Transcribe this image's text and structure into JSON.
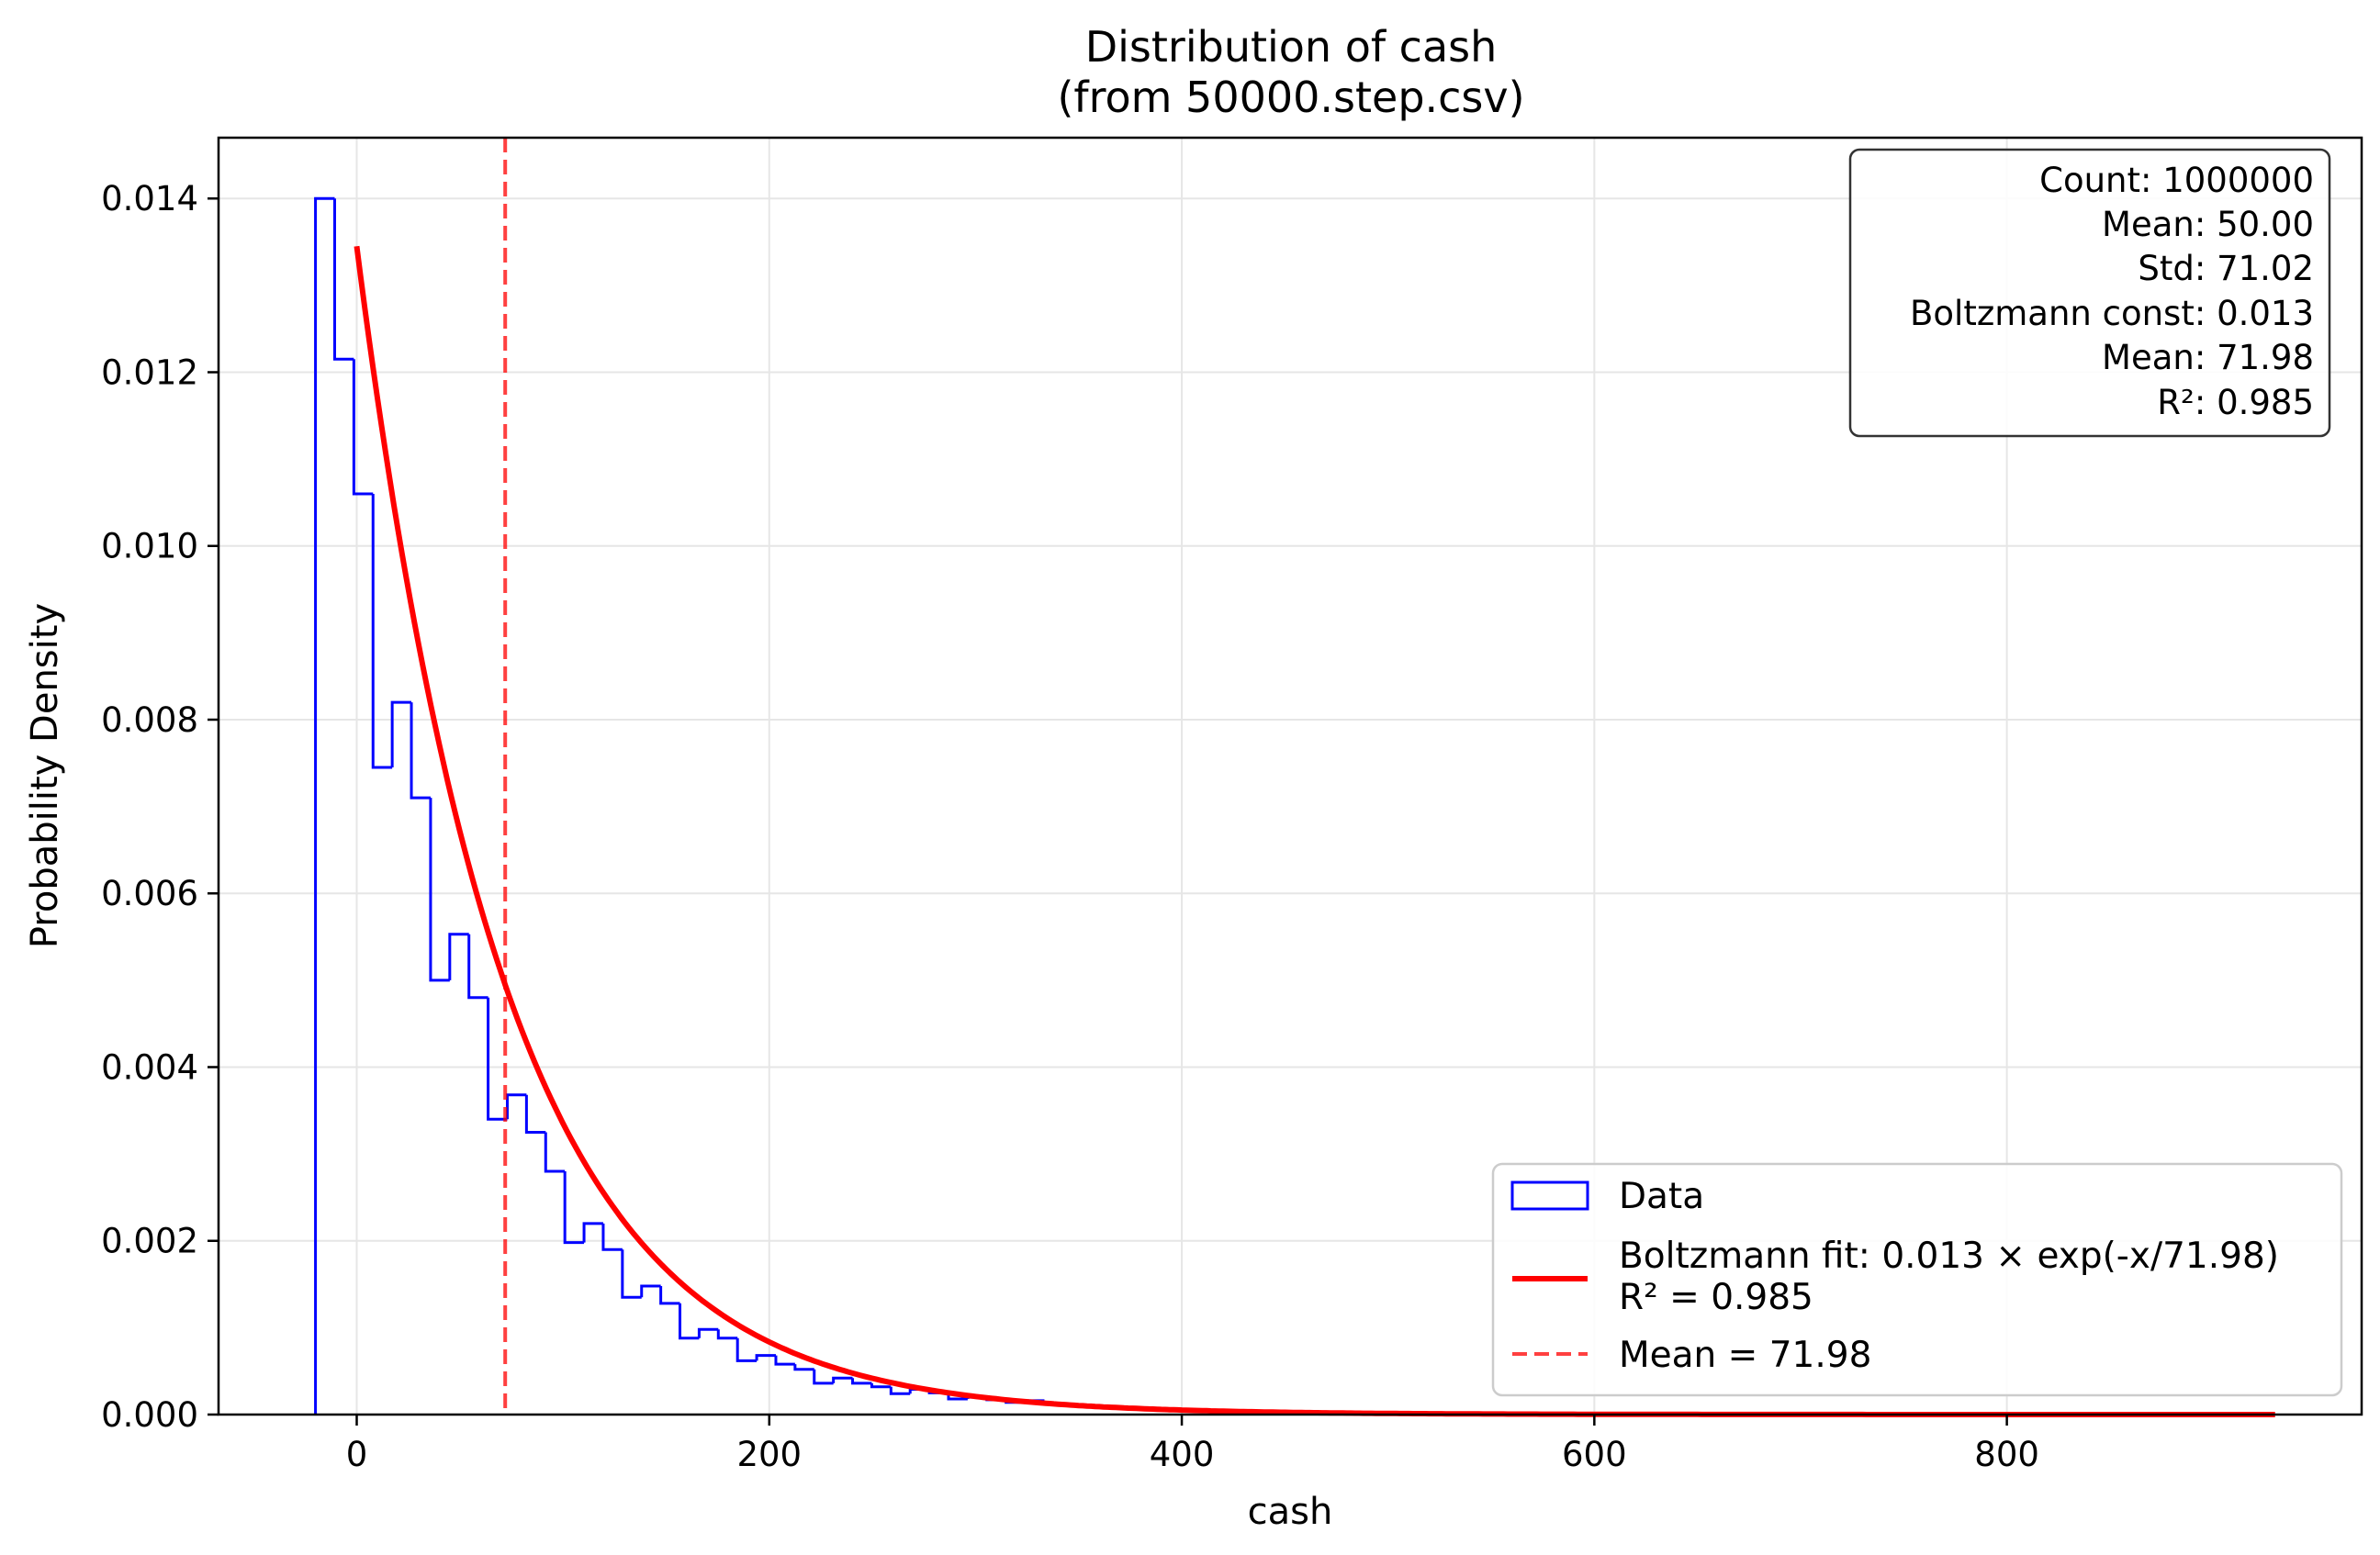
{
  "chart_data": {
    "type": "histogram",
    "title": "Distribution of cash",
    "subtitle": "(from 50000.step.csv)",
    "xlabel": "cash",
    "ylabel": "Probability Density",
    "xlim": [
      -67,
      972
    ],
    "ylim": [
      0,
      0.0147
    ],
    "x_ticks": [
      0,
      200,
      400,
      600,
      800
    ],
    "x_tick_labels": [
      "0",
      "200",
      "400",
      "600",
      "800"
    ],
    "y_ticks": [
      0,
      0.002,
      0.004,
      0.006,
      0.008,
      0.01,
      0.012,
      0.014
    ],
    "y_tick_labels": [
      "0.000",
      "0.002",
      "0.004",
      "0.006",
      "0.008",
      "0.010",
      "0.012",
      "0.014"
    ],
    "grid": true,
    "histogram": {
      "name": "Data",
      "color": "#0000ff",
      "bin_start": -20,
      "bin_width": 9.3,
      "densities": [
        0.014,
        0.01215,
        0.0106,
        0.00745,
        0.0082,
        0.0071,
        0.005,
        0.00553,
        0.0048,
        0.0034,
        0.00368,
        0.00325,
        0.0028,
        0.00198,
        0.0022,
        0.0019,
        0.00135,
        0.00148,
        0.00128,
        0.00088,
        0.00098,
        0.00088,
        0.00062,
        0.00068,
        0.00058,
        0.00052,
        0.00036,
        0.00042,
        0.00036,
        0.00032,
        0.00024,
        0.00029,
        0.00025,
        0.00018,
        0.0002,
        0.00017,
        0.00014,
        0.00016,
        0.00012,
        0.0001,
        0.0001,
        8e-05,
        7e-05,
        6e-05,
        6e-05,
        5e-05,
        4e-05,
        4e-05,
        3e-05,
        3e-05,
        2e-05,
        2e-05,
        2e-05,
        2e-05,
        1e-05,
        1e-05,
        1e-05,
        1e-05,
        1e-05,
        1e-05
      ]
    },
    "fit": {
      "name": "Boltzmann fit: 0.013 × exp(-x/71.98)",
      "name_line2": "R² = 0.985",
      "color": "#ff0000",
      "amplitude": 0.01345,
      "scale": 71.98,
      "x_range": [
        0,
        930
      ]
    },
    "mean_line": {
      "name": "Mean = 71.98",
      "x": 71.98,
      "color": "#ff0000"
    },
    "stats_box": {
      "position": "top-right",
      "lines": [
        "Count: 1000000",
        "Mean: 50.00",
        "Std: 71.02",
        "Boltzmann const: 0.013",
        "Mean: 71.98",
        "R²: 0.985"
      ]
    },
    "legend": {
      "position": "bottom-right",
      "entries": [
        "Data",
        "Boltzmann fit: 0.013 × exp(-x/71.98)",
        "R² = 0.985",
        "Mean = 71.98"
      ]
    }
  }
}
